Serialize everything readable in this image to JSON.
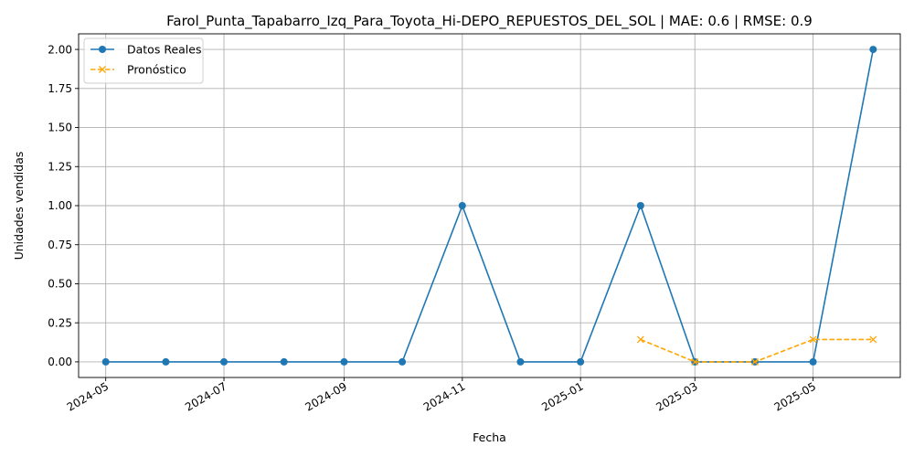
{
  "chart_data": {
    "type": "line",
    "title": "Farol_Punta_Tapabarro_Izq_Para_Toyota_Hi-DEPO_REPUESTOS_DEL_SOL | MAE: 0.6 | RMSE: 0.9",
    "xlabel": "Fecha",
    "ylabel": "Unidades vendidas",
    "x_is_date": true,
    "xlim": [
      "2024-04-17",
      "2025-06-15"
    ],
    "ylim": [
      -0.1,
      2.1
    ],
    "grid": true,
    "legend_position": "upper left",
    "x_ticks": [
      "2024-05",
      "2024-07",
      "2024-09",
      "2024-11",
      "2025-01",
      "2025-03",
      "2025-05"
    ],
    "y_ticks": [
      "0.00",
      "0.25",
      "0.50",
      "0.75",
      "1.00",
      "1.25",
      "1.50",
      "1.75",
      "2.00"
    ],
    "series": [
      {
        "name": "Datos Reales",
        "color": "#1f77b4",
        "linestyle": "solid",
        "marker": "circle",
        "points": [
          {
            "x": "2024-05-01",
            "y": 0
          },
          {
            "x": "2024-06-01",
            "y": 0
          },
          {
            "x": "2024-07-01",
            "y": 0
          },
          {
            "x": "2024-08-01",
            "y": 0
          },
          {
            "x": "2024-09-01",
            "y": 0
          },
          {
            "x": "2024-10-01",
            "y": 0
          },
          {
            "x": "2024-11-01",
            "y": 1
          },
          {
            "x": "2024-12-01",
            "y": 0
          },
          {
            "x": "2025-01-01",
            "y": 0
          },
          {
            "x": "2025-02-01",
            "y": 1
          },
          {
            "x": "2025-03-01",
            "y": 0
          },
          {
            "x": "2025-04-01",
            "y": 0
          },
          {
            "x": "2025-05-01",
            "y": 0
          },
          {
            "x": "2025-06-01",
            "y": 2
          }
        ]
      },
      {
        "name": "Pronóstico",
        "color": "#ffa500",
        "linestyle": "dashed",
        "marker": "x",
        "points": [
          {
            "x": "2025-02-01",
            "y": 0.143
          },
          {
            "x": "2025-03-01",
            "y": 0
          },
          {
            "x": "2025-04-01",
            "y": 0
          },
          {
            "x": "2025-05-01",
            "y": 0.143
          },
          {
            "x": "2025-06-01",
            "y": 0.143
          }
        ]
      }
    ]
  }
}
